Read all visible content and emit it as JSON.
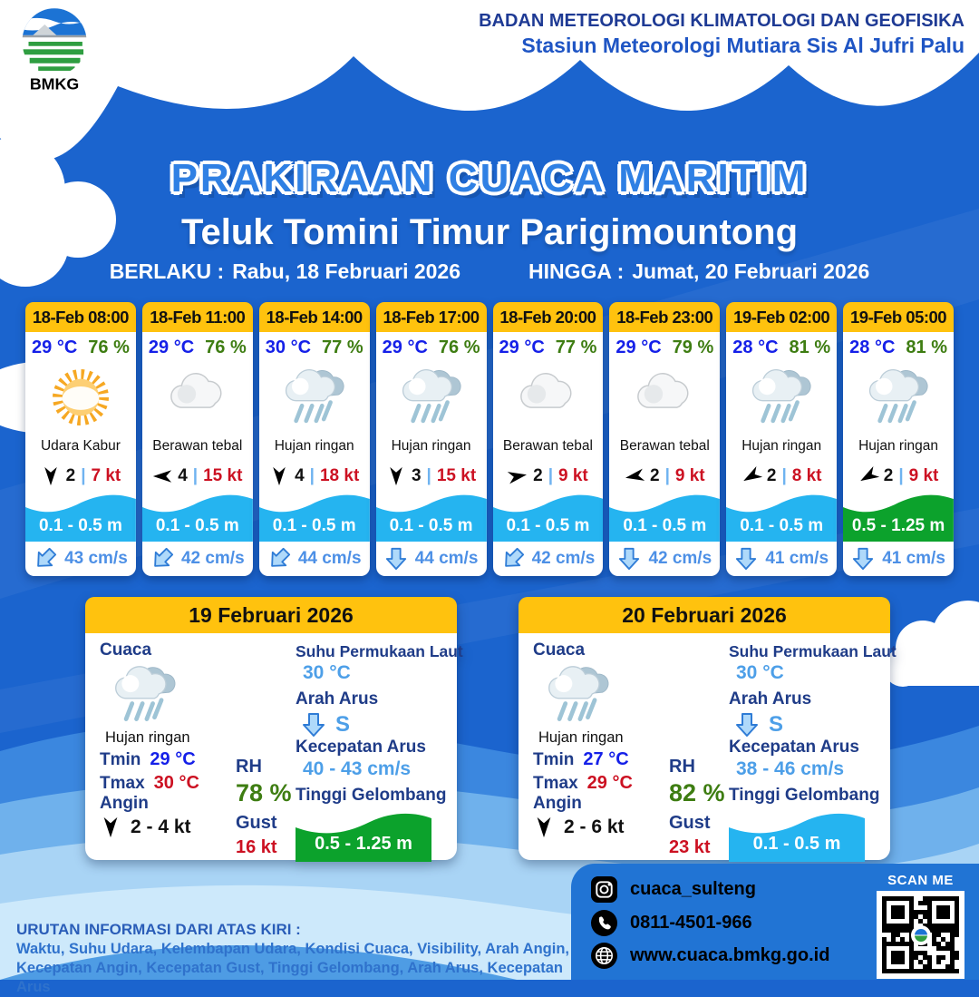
{
  "header": {
    "org_line1": "BADAN METEOROLOGI KLIMATOLOGI DAN GEOFISIKA",
    "org_line2": "Stasiun Meteorologi Mutiara Sis Al Jufri Palu",
    "logo_text": "BMKG"
  },
  "title": {
    "main": "PRAKIRAAN CUACA MARITIM",
    "area": "Teluk Tomini Timur Parigimountong",
    "valid_from_label": "BERLAKU :",
    "valid_from": "Rabu, 18 Februari 2026",
    "valid_to_label": "HINGGA :",
    "valid_to": "Jumat, 20 Februari 2026"
  },
  "hourly_labels": {
    "wind_sep": "|"
  },
  "hourly": [
    {
      "time": "18-Feb 08:00",
      "temp": "29 °C",
      "rh": "76 %",
      "weather": "Udara Kabur",
      "icon": "haze",
      "wind_bf": "2",
      "wind_kt": "7 kt",
      "wind_deg": 180,
      "wave": "0.1 - 0.5 m",
      "wave_color": "cyan",
      "current": "43 cm/s",
      "current_deg": 45
    },
    {
      "time": "18-Feb 11:00",
      "temp": "29 °C",
      "rh": "76 %",
      "weather": "Berawan tebal",
      "icon": "cloud",
      "wind_bf": "4",
      "wind_kt": "15 kt",
      "wind_deg": 270,
      "wave": "0.1 - 0.5 m",
      "wave_color": "cyan",
      "current": "42 cm/s",
      "current_deg": 45
    },
    {
      "time": "18-Feb 14:00",
      "temp": "30 °C",
      "rh": "77 %",
      "weather": "Hujan ringan",
      "icon": "rain",
      "wind_bf": "4",
      "wind_kt": "18 kt",
      "wind_deg": 180,
      "wave": "0.1 - 0.5 m",
      "wave_color": "cyan",
      "current": "44 cm/s",
      "current_deg": 45
    },
    {
      "time": "18-Feb 17:00",
      "temp": "29 °C",
      "rh": "76 %",
      "weather": "Hujan ringan",
      "icon": "rain",
      "wind_bf": "3",
      "wind_kt": "15 kt",
      "wind_deg": 180,
      "wave": "0.1 - 0.5 m",
      "wave_color": "cyan",
      "current": "44 cm/s",
      "current_deg": 0
    },
    {
      "time": "18-Feb 20:00",
      "temp": "29 °C",
      "rh": "77 %",
      "weather": "Berawan tebal",
      "icon": "cloud",
      "wind_bf": "2",
      "wind_kt": "9 kt",
      "wind_deg": 80,
      "wave": "0.1 - 0.5 m",
      "wave_color": "cyan",
      "current": "42 cm/s",
      "current_deg": 45
    },
    {
      "time": "18-Feb 23:00",
      "temp": "29 °C",
      "rh": "79 %",
      "weather": "Berawan tebal",
      "icon": "cloud",
      "wind_bf": "2",
      "wind_kt": "9 kt",
      "wind_deg": 260,
      "wave": "0.1 - 0.5 m",
      "wave_color": "cyan",
      "current": "42 cm/s",
      "current_deg": 0
    },
    {
      "time": "19-Feb 02:00",
      "temp": "28 °C",
      "rh": "81 %",
      "weather": "Hujan ringan",
      "icon": "rain",
      "wind_bf": "2",
      "wind_kt": "8 kt",
      "wind_deg": 240,
      "wave": "0.1 - 0.5 m",
      "wave_color": "cyan",
      "current": "41 cm/s",
      "current_deg": 0
    },
    {
      "time": "19-Feb 05:00",
      "temp": "28 °C",
      "rh": "81 %",
      "weather": "Hujan ringan",
      "icon": "rain",
      "wind_bf": "2",
      "wind_kt": "9 kt",
      "wind_deg": 240,
      "wave": "0.5 - 1.25 m",
      "wave_color": "green",
      "current": "41 cm/s",
      "current_deg": 0
    }
  ],
  "daily_labels": {
    "weather": "Cuaca",
    "tmin": "Tmin",
    "tmax": "Tmax",
    "wind": "Angin",
    "rh": "RH",
    "gust": "Gust",
    "sst": "Suhu Permukaan Laut",
    "current_dir": "Arah Arus",
    "current_speed": "Kecepatan Arus",
    "wave": "Tinggi Gelombang"
  },
  "daily": [
    {
      "date": "19 Februari 2026",
      "weather": "Hujan ringan",
      "icon": "rain",
      "tmin": "29 °C",
      "tmax": "30 °C",
      "wind": "2 - 4 kt",
      "rh": "78 %",
      "gust": "16 kt",
      "sst": "30 °C",
      "current_dir": "S",
      "current_speed": "40 - 43 cm/s",
      "wave": "0.5 - 1.25 m",
      "wave_color": "green"
    },
    {
      "date": "20 Februari 2026",
      "weather": "Hujan ringan",
      "icon": "rain",
      "tmin": "27 °C",
      "tmax": "29 °C",
      "wind": "2 - 6 kt",
      "rh": "82 %",
      "gust": "23 kt",
      "sst": "30 °C",
      "current_dir": "S",
      "current_speed": "38 - 46 cm/s",
      "wave": "0.1 - 0.5 m",
      "wave_color": "cyan"
    }
  ],
  "footer": {
    "info_title": "URUTAN INFORMASI DARI ATAS KIRI :",
    "info_line1": "Waktu, Suhu Udara, Kelembapan Udara, Kondisi Cuaca, Visibility, Arah Angin,",
    "info_line2": "Kecepatan Angin, Kecepatan Gust, Tinggi Gelombang, Arah Arus, Kecepatan Arus",
    "instagram": "cuaca_sulteng",
    "phone": "0811-4501-966",
    "website": "www.cuaca.bmkg.go.id",
    "scan_me": "SCAN ME"
  },
  "colors": {
    "background_blue": "#1B64CE",
    "accent_yellow": "#FFC20E",
    "wave_cyan": "#25B4F0",
    "wave_green": "#0CA22C",
    "temp_blue": "#1520E8",
    "humidity_green": "#3E7D12",
    "speed_red": "#CC1122",
    "label_navy": "#1F3C88",
    "footer_panel_blue": "#2174D4"
  }
}
